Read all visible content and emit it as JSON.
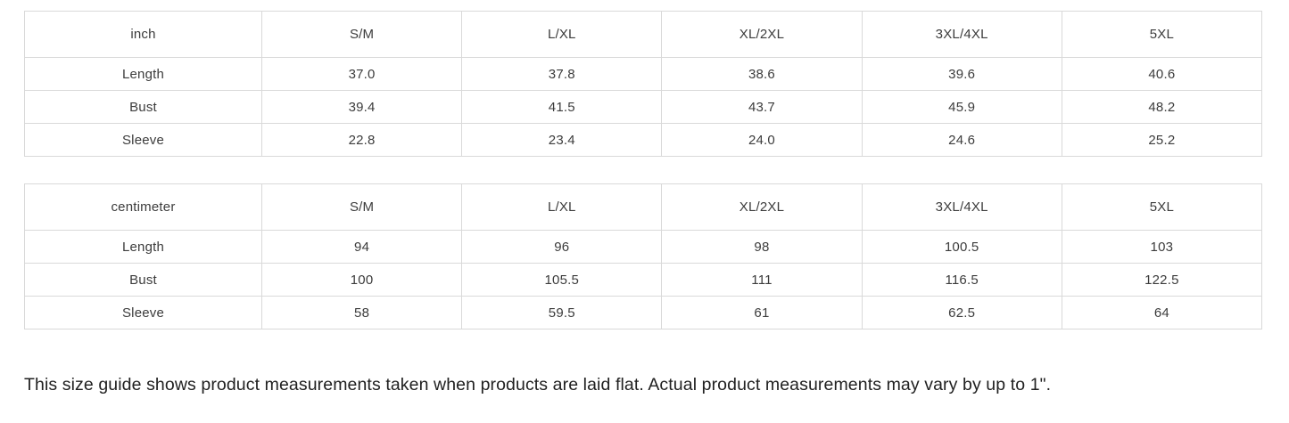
{
  "tables": [
    {
      "unit_label": "inch",
      "columns": [
        "S/M",
        "L/XL",
        "XL/2XL",
        "3XL/4XL",
        "5XL"
      ],
      "rows": [
        {
          "label": "Length",
          "values": [
            "37.0",
            "37.8",
            "38.6",
            "39.6",
            "40.6"
          ]
        },
        {
          "label": "Bust",
          "values": [
            "39.4",
            "41.5",
            "43.7",
            "45.9",
            "48.2"
          ]
        },
        {
          "label": "Sleeve",
          "values": [
            "22.8",
            "23.4",
            "24.0",
            "24.6",
            "25.2"
          ]
        }
      ]
    },
    {
      "unit_label": "centimeter",
      "columns": [
        "S/M",
        "L/XL",
        "XL/2XL",
        "3XL/4XL",
        "5XL"
      ],
      "rows": [
        {
          "label": "Length",
          "values": [
            "94",
            "96",
            "98",
            "100.5",
            "103"
          ]
        },
        {
          "label": "Bust",
          "values": [
            "100",
            "105.5",
            "111",
            "116.5",
            "122.5"
          ]
        },
        {
          "label": "Sleeve",
          "values": [
            "58",
            "59.5",
            "61",
            "62.5",
            "64"
          ]
        }
      ]
    }
  ],
  "footnote": "This size guide shows product measurements taken when products are laid flat. Actual product measurements may vary by up to 1\".",
  "colors": {
    "table_border": "#d9d9d9",
    "table_text": "#3c3c3c",
    "footnote_text": "#212121",
    "background": "#ffffff"
  }
}
